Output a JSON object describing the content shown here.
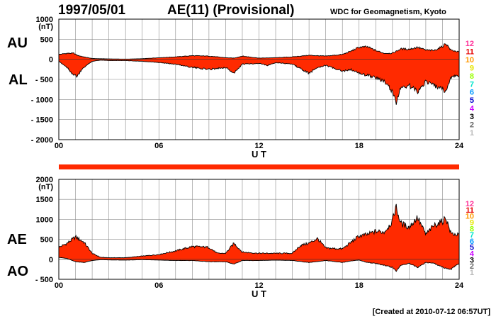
{
  "header": {
    "date": "1997/05/01",
    "index": "AE(11) (Provisional)",
    "source": "WDC for Geomagnetism, Kyoto",
    "created": "[Created at 2010-07-12 06:57UT]"
  },
  "colors": {
    "fill": "#ff2a00",
    "grid": "#888888",
    "axis": "#000000",
    "outline": "#000000"
  },
  "station_colors": [
    "#ff3399",
    "#e60000",
    "#ff9900",
    "#e6e600",
    "#99ff00",
    "#00e6cc",
    "#0099ff",
    "#0000cc",
    "#cc00ff",
    "#000000",
    "#666666",
    "#bbbbbb"
  ],
  "chart_data": [
    {
      "type": "area",
      "name": "AU/AL panel",
      "labels": {
        "upper": "AU",
        "lower": "AL",
        "unit": "(nT)"
      },
      "x_label": "U T",
      "x_ticks": [
        "00",
        "06",
        "12",
        "18",
        "24"
      ],
      "y_ticks": [
        "1000",
        "500",
        "0",
        "- 500",
        "- 1000",
        "- 1500",
        "- 2000"
      ],
      "ylim": [
        -2000,
        1000
      ],
      "xlim": [
        0,
        24
      ],
      "station_count_labels": [
        "12",
        "11",
        "10",
        "9",
        "8",
        "7",
        "6",
        "5",
        "4",
        "3",
        "2",
        "1"
      ],
      "series": [
        {
          "name": "AU",
          "x": [
            0,
            0.5,
            0.9,
            1.1,
            1.5,
            2,
            3,
            4,
            5,
            6,
            7,
            8,
            9,
            10,
            10.5,
            11,
            12,
            13,
            14,
            15,
            16,
            17,
            17.5,
            18,
            18.5,
            19,
            19.5,
            20,
            20.5,
            21,
            21.5,
            22,
            22.5,
            23,
            23.2,
            23.5,
            24
          ],
          "y": [
            120,
            150,
            150,
            100,
            60,
            20,
            10,
            5,
            15,
            40,
            60,
            90,
            80,
            40,
            30,
            80,
            30,
            40,
            60,
            100,
            80,
            120,
            200,
            300,
            310,
            220,
            150,
            150,
            260,
            250,
            300,
            230,
            220,
            320,
            400,
            230,
            180
          ]
        },
        {
          "name": "AL",
          "x": [
            0,
            0.5,
            0.9,
            1.1,
            1.5,
            2,
            2.5,
            3,
            4,
            5,
            6,
            7,
            8,
            9,
            10,
            10.5,
            11,
            12,
            12.5,
            13,
            14,
            15,
            15.5,
            16,
            17,
            17.5,
            18,
            18.5,
            19,
            19.5,
            20,
            20.2,
            20.5,
            21,
            21.5,
            22,
            22.5,
            23,
            23.2,
            23.5,
            24
          ],
          "y": [
            -50,
            -200,
            -400,
            -420,
            -200,
            -50,
            -20,
            -30,
            -30,
            -50,
            -80,
            -120,
            -200,
            -250,
            -200,
            -350,
            -120,
            -100,
            -150,
            -80,
            -120,
            -350,
            -200,
            -150,
            -300,
            -250,
            -350,
            -400,
            -450,
            -550,
            -800,
            -1100,
            -700,
            -650,
            -800,
            -550,
            -650,
            -750,
            -800,
            -450,
            -400
          ]
        }
      ]
    },
    {
      "type": "area",
      "name": "AE/AO panel",
      "labels": {
        "upper": "AE",
        "lower": "AO",
        "unit": "(nT)"
      },
      "x_label": "U T",
      "x_ticks": [
        "00",
        "06",
        "12",
        "18",
        "24"
      ],
      "y_ticks": [
        "2000",
        "1500",
        "1000",
        "500",
        "0",
        "- 500"
      ],
      "ylim": [
        -500,
        2000
      ],
      "xlim": [
        0,
        24
      ],
      "station_count_labels": [
        "12",
        "11",
        "10",
        "9",
        "8",
        "7",
        "6",
        "5",
        "4",
        "3",
        "2",
        "1"
      ],
      "series": [
        {
          "name": "AE",
          "x": [
            0,
            0.5,
            1,
            1.5,
            2,
            2.5,
            3,
            4,
            5,
            6,
            7,
            8,
            9,
            9.5,
            10,
            10.5,
            11,
            12,
            13,
            14,
            14.5,
            15,
            15.5,
            16,
            17,
            17.5,
            18,
            18.5,
            19,
            19.5,
            20,
            20.2,
            20.5,
            21,
            21.5,
            22,
            22.5,
            23,
            23.2,
            23.5,
            24
          ],
          "y": [
            300,
            400,
            560,
            430,
            150,
            50,
            40,
            40,
            80,
            120,
            210,
            320,
            300,
            150,
            150,
            400,
            180,
            150,
            150,
            150,
            350,
            400,
            520,
            280,
            260,
            420,
            580,
            620,
            700,
            680,
            950,
            1330,
            900,
            800,
            1050,
            620,
            850,
            950,
            1050,
            650,
            600
          ]
        },
        {
          "name": "AO",
          "x": [
            0,
            0.5,
            1,
            1.5,
            2,
            2.5,
            3,
            4,
            5,
            6,
            7,
            8,
            9,
            10,
            10.5,
            11,
            12,
            13,
            14,
            15,
            16,
            17,
            17.5,
            18,
            18.5,
            19,
            19.5,
            20,
            20.2,
            20.5,
            21,
            21.5,
            22,
            22.5,
            23,
            23.5,
            24
          ],
          "y": [
            50,
            20,
            -60,
            -80,
            -30,
            -10,
            -15,
            -20,
            -10,
            -20,
            -30,
            -30,
            -60,
            -60,
            -120,
            -30,
            -30,
            -20,
            -30,
            -80,
            -30,
            -80,
            -40,
            -20,
            -80,
            -100,
            -150,
            -200,
            -300,
            -150,
            -100,
            -200,
            -80,
            -100,
            -200,
            -250,
            -100
          ]
        }
      ]
    }
  ]
}
